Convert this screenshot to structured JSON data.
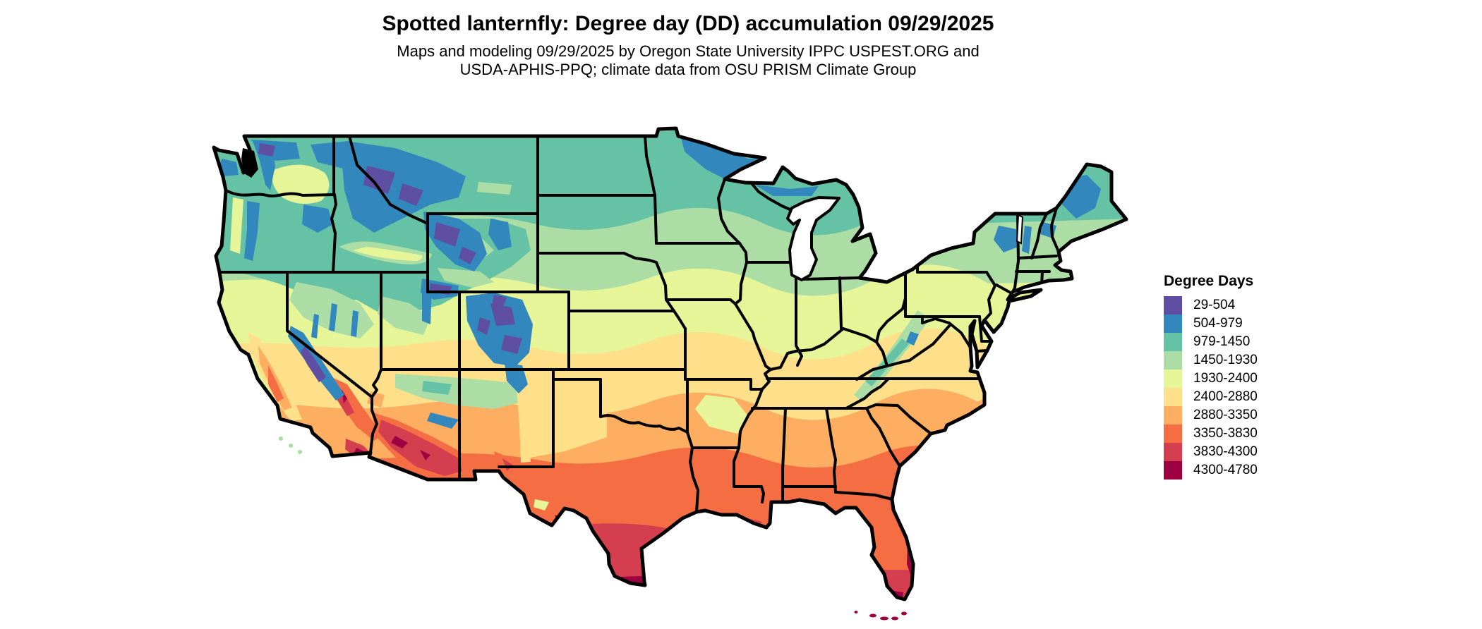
{
  "header": {
    "title": "Spotted lanternfly: Degree day (DD) accumulation 09/29/2025",
    "subtitle1": "Maps and modeling 09/29/2025 by Oregon State University IPPC USPEST.ORG and",
    "subtitle2": "USDA-APHIS-PPQ; climate data from OSU PRISM Climate Group"
  },
  "legend": {
    "title": "Degree Days",
    "entries": [
      {
        "label": "29-504",
        "color": "#5e4fa2"
      },
      {
        "label": "504-979",
        "color": "#3288bd"
      },
      {
        "label": "979-1450",
        "color": "#66c2a5"
      },
      {
        "label": "1450-1930",
        "color": "#abdda4"
      },
      {
        "label": "1930-2400",
        "color": "#e6f598"
      },
      {
        "label": "2400-2880",
        "color": "#fee08b"
      },
      {
        "label": "2880-3350",
        "color": "#fdae61"
      },
      {
        "label": "3350-3830",
        "color": "#f46d43"
      },
      {
        "label": "3830-4300",
        "color": "#d53e4f"
      },
      {
        "label": "4300-4780",
        "color": "#9e0142"
      }
    ]
  },
  "map": {
    "region": "Continental United States",
    "boundary_color": "#000000",
    "water_color": "#ffffff"
  }
}
